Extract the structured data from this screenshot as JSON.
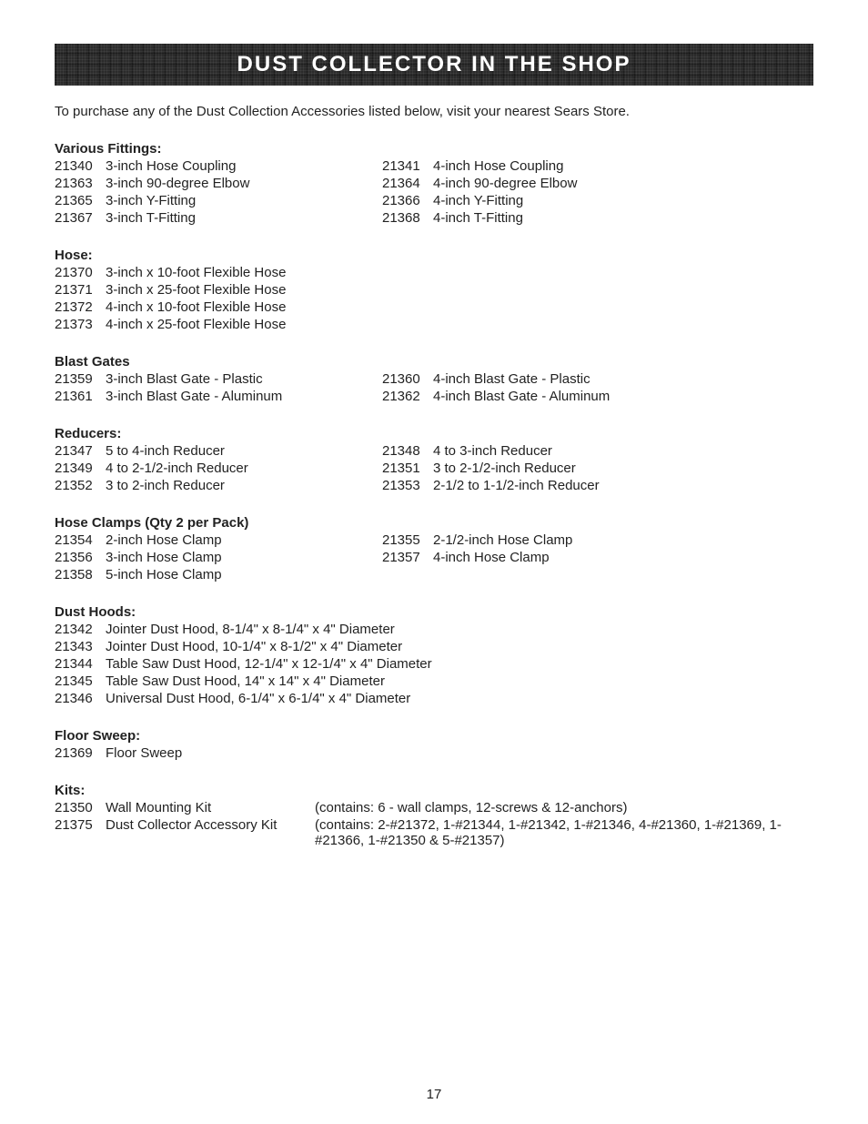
{
  "banner_title": "DUST COLLECTOR IN THE SHOP",
  "intro": "To purchase any of the Dust Collection Accessories listed below, visit your nearest Sears Store.",
  "page_number": "17",
  "fittings": {
    "title": "Various Fittings:",
    "rows": [
      {
        "a_pn": "21340",
        "a_desc": "3-inch Hose Coupling",
        "b_pn": "21341",
        "b_desc": "4-inch Hose Coupling"
      },
      {
        "a_pn": "21363",
        "a_desc": "3-inch 90-degree Elbow",
        "b_pn": "21364",
        "b_desc": "4-inch 90-degree Elbow"
      },
      {
        "a_pn": "21365",
        "a_desc": "3-inch Y-Fitting",
        "b_pn": "21366",
        "b_desc": "4-inch Y-Fitting"
      },
      {
        "a_pn": "21367",
        "a_desc": "3-inch T-Fitting",
        "b_pn": "21368",
        "b_desc": "4-inch T-Fitting"
      }
    ]
  },
  "hose": {
    "title": "Hose:",
    "rows": [
      {
        "pn": "21370",
        "desc": "3-inch x 10-foot Flexible Hose"
      },
      {
        "pn": "21371",
        "desc": "3-inch x 25-foot Flexible Hose"
      },
      {
        "pn": "21372",
        "desc": "4-inch x 10-foot Flexible Hose"
      },
      {
        "pn": "21373",
        "desc": "4-inch x 25-foot Flexible Hose"
      }
    ]
  },
  "gates": {
    "title": "Blast Gates",
    "rows": [
      {
        "a_pn": "21359",
        "a_desc": "3-inch Blast Gate - Plastic",
        "b_pn": "21360",
        "b_desc": "4-inch Blast Gate - Plastic"
      },
      {
        "a_pn": "21361",
        "a_desc": "3-inch Blast Gate - Aluminum",
        "b_pn": "21362",
        "b_desc": "4-inch Blast Gate - Aluminum"
      }
    ]
  },
  "reducers": {
    "title": "Reducers:",
    "rows": [
      {
        "a_pn": "21347",
        "a_desc": "5 to 4-inch Reducer",
        "b_pn": "21348",
        "b_desc": "4 to 3-inch Reducer"
      },
      {
        "a_pn": "21349",
        "a_desc": "4 to 2-1/2-inch Reducer",
        "b_pn": "21351",
        "b_desc": "3 to 2-1/2-inch Reducer"
      },
      {
        "a_pn": "21352",
        "a_desc": "3 to 2-inch Reducer",
        "b_pn": "21353",
        "b_desc": "2-1/2 to 1-1/2-inch Reducer"
      }
    ]
  },
  "clamps": {
    "title": "Hose Clamps (Qty 2 per Pack)",
    "rows": [
      {
        "a_pn": "21354",
        "a_desc": "2-inch Hose Clamp",
        "b_pn": "21355",
        "b_desc": "2-1/2-inch Hose Clamp"
      },
      {
        "a_pn": "21356",
        "a_desc": "3-inch Hose Clamp",
        "b_pn": "21357",
        "b_desc": "4-inch Hose Clamp"
      },
      {
        "a_pn": "21358",
        "a_desc": "5-inch Hose Clamp",
        "b_pn": "",
        "b_desc": ""
      }
    ]
  },
  "hoods": {
    "title": "Dust Hoods:",
    "rows": [
      {
        "pn": "21342",
        "desc": "Jointer Dust Hood, 8-1/4\" x 8-1/4\" x 4\" Diameter"
      },
      {
        "pn": "21343",
        "desc": "Jointer Dust Hood, 10-1/4\" x 8-1/2\" x 4\" Diameter"
      },
      {
        "pn": "21344",
        "desc": "Table Saw Dust Hood, 12-1/4\" x 12-1/4\" x 4\" Diameter"
      },
      {
        "pn": "21345",
        "desc": "Table Saw Dust Hood, 14\" x 14\" x 4\" Diameter"
      },
      {
        "pn": "21346",
        "desc": "Universal Dust Hood, 6-1/4\" x 6-1/4\" x 4\" Diameter"
      }
    ]
  },
  "sweep": {
    "title": "Floor Sweep:",
    "rows": [
      {
        "pn": "21369",
        "desc": "Floor Sweep"
      }
    ]
  },
  "kits": {
    "title": "Kits:",
    "rows": [
      {
        "pn": "21350",
        "desc": "Wall Mounting Kit",
        "note": "(contains: 6 - wall clamps, 12-screws & 12-anchors)"
      },
      {
        "pn": "21375",
        "desc": "Dust Collector Accessory Kit",
        "note": "(contains: 2-#21372, 1-#21344, 1-#21342, 1-#21346, 4-#21360, 1-#21369, 1-#21366, 1-#21350 & 5-#21357)"
      }
    ]
  }
}
